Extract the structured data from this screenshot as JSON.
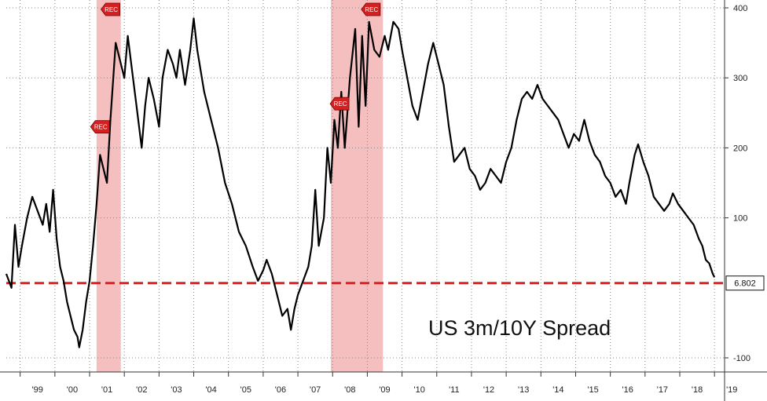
{
  "chart_data": {
    "type": "line",
    "title": "US 3m/10Y Spread",
    "x_tick_labels": [
      "'99",
      "'00",
      "'01",
      "'02",
      "'03",
      "'04",
      "'05",
      "'06",
      "'07",
      "'08",
      "'09",
      "'10",
      "'11",
      "'12",
      "'13",
      "'14",
      "'15",
      "'16",
      "'17",
      "'18",
      "'19"
    ],
    "y_ticks": [
      400,
      300,
      200,
      100,
      -100
    ],
    "ylim": [
      -120,
      410
    ],
    "xlim": [
      1998.6,
      2019.2
    ],
    "reference_line": {
      "value": 6.802,
      "label": "6.802",
      "color": "#e02020"
    },
    "recession_shading": [
      [
        2001.2,
        2001.9
      ],
      [
        2007.95,
        2009.45
      ]
    ],
    "rec_markers": [
      {
        "x": 2001.3,
        "y": 230,
        "text": "REC"
      },
      {
        "x": 2001.6,
        "y": 405,
        "text": "REC"
      },
      {
        "x": 2008.2,
        "y": 263,
        "text": "REC"
      },
      {
        "x": 2009.1,
        "y": 440,
        "text": "REC"
      }
    ],
    "series": [
      {
        "color": "#000000",
        "points": [
          [
            1998.6,
            20
          ],
          [
            1998.75,
            0
          ],
          [
            1998.85,
            90
          ],
          [
            1998.95,
            30
          ],
          [
            1999.05,
            60
          ],
          [
            1999.2,
            100
          ],
          [
            1999.35,
            130
          ],
          [
            1999.5,
            110
          ],
          [
            1999.65,
            90
          ],
          [
            1999.75,
            120
          ],
          [
            1999.85,
            80
          ],
          [
            1999.95,
            140
          ],
          [
            2000.05,
            70
          ],
          [
            2000.15,
            30
          ],
          [
            2000.25,
            10
          ],
          [
            2000.35,
            -20
          ],
          [
            2000.45,
            -40
          ],
          [
            2000.55,
            -60
          ],
          [
            2000.65,
            -70
          ],
          [
            2000.7,
            -85
          ],
          [
            2000.8,
            -60
          ],
          [
            2000.9,
            -20
          ],
          [
            2001.0,
            10
          ],
          [
            2001.1,
            60
          ],
          [
            2001.2,
            120
          ],
          [
            2001.3,
            190
          ],
          [
            2001.4,
            170
          ],
          [
            2001.5,
            150
          ],
          [
            2001.6,
            240
          ],
          [
            2001.75,
            350
          ],
          [
            2001.85,
            330
          ],
          [
            2002.0,
            300
          ],
          [
            2002.1,
            360
          ],
          [
            2002.2,
            320
          ],
          [
            2002.35,
            260
          ],
          [
            2002.5,
            200
          ],
          [
            2002.6,
            260
          ],
          [
            2002.7,
            300
          ],
          [
            2002.85,
            270
          ],
          [
            2003.0,
            230
          ],
          [
            2003.1,
            300
          ],
          [
            2003.25,
            340
          ],
          [
            2003.4,
            320
          ],
          [
            2003.5,
            300
          ],
          [
            2003.6,
            340
          ],
          [
            2003.75,
            290
          ],
          [
            2003.9,
            340
          ],
          [
            2004.0,
            385
          ],
          [
            2004.1,
            340
          ],
          [
            2004.3,
            280
          ],
          [
            2004.5,
            240
          ],
          [
            2004.7,
            200
          ],
          [
            2004.9,
            150
          ],
          [
            2005.1,
            120
          ],
          [
            2005.3,
            80
          ],
          [
            2005.5,
            60
          ],
          [
            2005.7,
            30
          ],
          [
            2005.85,
            10
          ],
          [
            2006.0,
            25
          ],
          [
            2006.1,
            40
          ],
          [
            2006.25,
            20
          ],
          [
            2006.4,
            -10
          ],
          [
            2006.55,
            -40
          ],
          [
            2006.7,
            -30
          ],
          [
            2006.8,
            -60
          ],
          [
            2006.9,
            -30
          ],
          [
            2007.0,
            -10
          ],
          [
            2007.15,
            10
          ],
          [
            2007.3,
            30
          ],
          [
            2007.4,
            60
          ],
          [
            2007.5,
            140
          ],
          [
            2007.6,
            60
          ],
          [
            2007.75,
            100
          ],
          [
            2007.85,
            200
          ],
          [
            2007.95,
            150
          ],
          [
            2008.05,
            240
          ],
          [
            2008.15,
            200
          ],
          [
            2008.25,
            280
          ],
          [
            2008.35,
            200
          ],
          [
            2008.5,
            300
          ],
          [
            2008.65,
            370
          ],
          [
            2008.75,
            230
          ],
          [
            2008.85,
            360
          ],
          [
            2008.95,
            260
          ],
          [
            2009.05,
            380
          ],
          [
            2009.2,
            340
          ],
          [
            2009.35,
            330
          ],
          [
            2009.5,
            360
          ],
          [
            2009.6,
            340
          ],
          [
            2009.75,
            380
          ],
          [
            2009.9,
            370
          ],
          [
            2010.0,
            340
          ],
          [
            2010.15,
            300
          ],
          [
            2010.3,
            260
          ],
          [
            2010.45,
            240
          ],
          [
            2010.6,
            280
          ],
          [
            2010.75,
            320
          ],
          [
            2010.9,
            350
          ],
          [
            2011.05,
            320
          ],
          [
            2011.2,
            290
          ],
          [
            2011.35,
            230
          ],
          [
            2011.5,
            180
          ],
          [
            2011.65,
            190
          ],
          [
            2011.8,
            200
          ],
          [
            2011.95,
            170
          ],
          [
            2012.1,
            160
          ],
          [
            2012.25,
            140
          ],
          [
            2012.4,
            150
          ],
          [
            2012.55,
            170
          ],
          [
            2012.7,
            160
          ],
          [
            2012.85,
            150
          ],
          [
            2013.0,
            180
          ],
          [
            2013.15,
            200
          ],
          [
            2013.3,
            240
          ],
          [
            2013.45,
            270
          ],
          [
            2013.6,
            280
          ],
          [
            2013.75,
            270
          ],
          [
            2013.9,
            290
          ],
          [
            2014.05,
            270
          ],
          [
            2014.2,
            260
          ],
          [
            2014.35,
            250
          ],
          [
            2014.5,
            240
          ],
          [
            2014.65,
            220
          ],
          [
            2014.8,
            200
          ],
          [
            2014.95,
            220
          ],
          [
            2015.1,
            210
          ],
          [
            2015.25,
            240
          ],
          [
            2015.4,
            210
          ],
          [
            2015.55,
            190
          ],
          [
            2015.7,
            180
          ],
          [
            2015.85,
            160
          ],
          [
            2016.0,
            150
          ],
          [
            2016.15,
            130
          ],
          [
            2016.3,
            140
          ],
          [
            2016.45,
            120
          ],
          [
            2016.55,
            150
          ],
          [
            2016.7,
            190
          ],
          [
            2016.8,
            205
          ],
          [
            2016.95,
            180
          ],
          [
            2017.1,
            160
          ],
          [
            2017.25,
            130
          ],
          [
            2017.4,
            120
          ],
          [
            2017.55,
            110
          ],
          [
            2017.7,
            120
          ],
          [
            2017.8,
            135
          ],
          [
            2017.95,
            120
          ],
          [
            2018.1,
            110
          ],
          [
            2018.25,
            100
          ],
          [
            2018.4,
            90
          ],
          [
            2018.55,
            70
          ],
          [
            2018.65,
            60
          ],
          [
            2018.75,
            40
          ],
          [
            2018.85,
            35
          ],
          [
            2018.95,
            20
          ],
          [
            2019.0,
            15
          ]
        ]
      }
    ]
  }
}
